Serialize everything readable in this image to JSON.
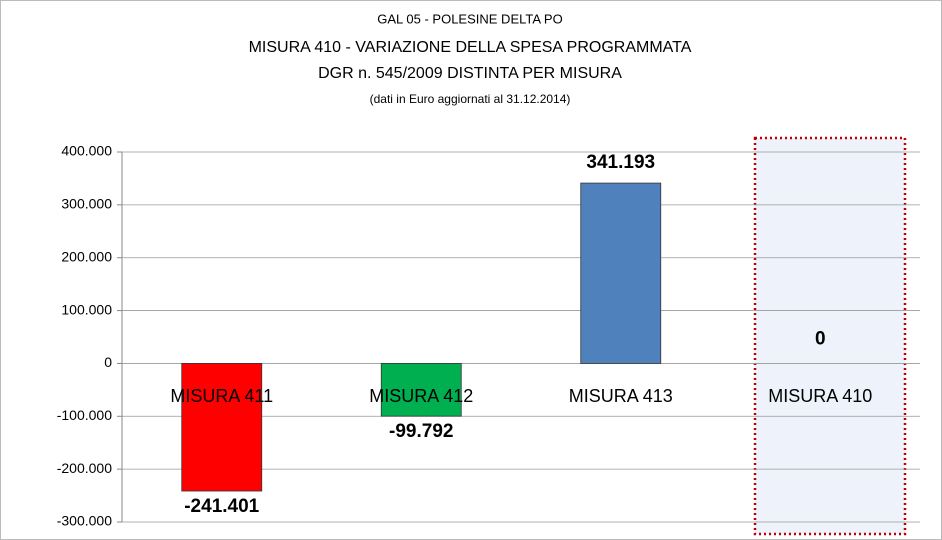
{
  "chart_data": {
    "type": "bar",
    "title": "GAL 05 - POLESINE DELTA  PO",
    "subtitle": "MISURA 410 - VARIAZIONE DELLA SPESA PROGRAMMATA",
    "subtitle2": "DGR n. 545/2009  DISTINTA PER MISURA",
    "note": "(dati in Euro aggiornati  al 31.12.2014)",
    "categories": [
      "MISURA 411",
      "MISURA 412",
      "MISURA 413",
      "MISURA 410"
    ],
    "values": [
      -241401,
      -99792,
      341193,
      0
    ],
    "value_labels": [
      "-241.401",
      "-99.792",
      "341.193",
      "0"
    ],
    "colors": [
      "#ff0000",
      "#00b050",
      "#4f81bd",
      "#4f81bd"
    ],
    "ylim": [
      -300000,
      400000
    ],
    "yticks": [
      {
        "value": -300000,
        "label": "-300.000"
      },
      {
        "value": -200000,
        "label": "-200.000"
      },
      {
        "value": -100000,
        "label": "-100.000"
      },
      0,
      {
        "value": 100000,
        "label": "100.000"
      },
      {
        "value": 200000,
        "label": "200.000"
      },
      {
        "value": 300000,
        "label": "300.000"
      },
      {
        "value": 400000,
        "label": "400.000"
      }
    ],
    "grid": true
  }
}
